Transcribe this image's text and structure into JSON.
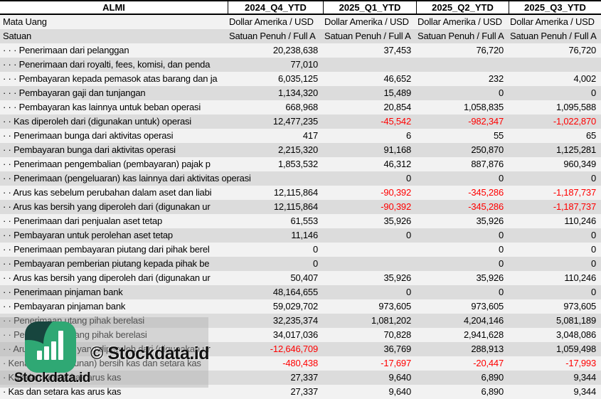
{
  "header": {
    "company": "ALMI",
    "columns": [
      "2024_Q4_YTD",
      "2025_Q1_YTD",
      "2025_Q2_YTD",
      "2025_Q3_YTD"
    ]
  },
  "rows": [
    {
      "label": "Mata Uang",
      "type": "meta",
      "values": [
        "Dollar Amerika / USD",
        "Dollar Amerika / USD",
        "Dollar Amerika / USD",
        "Dollar Amerika / USD"
      ]
    },
    {
      "label": "Satuan",
      "type": "meta",
      "values": [
        "Satuan Penuh / Full A",
        "Satuan Penuh / Full A",
        "Satuan Penuh / Full A",
        "Satuan Penuh / Full A"
      ]
    },
    {
      "label": "· · · Penerimaan dari pelanggan",
      "values": [
        "20,238,638",
        "37,453",
        "76,720",
        "76,720"
      ]
    },
    {
      "label": "· · · Penerimaan dari royalti, fees, komisi, dan penda",
      "values": [
        "77,010",
        "",
        "",
        ""
      ]
    },
    {
      "label": "· · · Pembayaran kepada pemasok atas barang dan ja",
      "values": [
        "6,035,125",
        "46,652",
        "232",
        "4,002"
      ]
    },
    {
      "label": "· · · Pembayaran gaji dan tunjangan",
      "values": [
        "1,134,320",
        "15,489",
        "0",
        "0"
      ]
    },
    {
      "label": "· · · Pembayaran kas lainnya untuk beban operasi",
      "values": [
        "668,968",
        "20,854",
        "1,058,835",
        "1,095,588"
      ]
    },
    {
      "label": "· · Kas diperoleh dari (digunakan untuk) operasi",
      "values": [
        "12,477,235",
        "-45,542",
        "-982,347",
        "-1,022,870"
      ]
    },
    {
      "label": "· · Penerimaan bunga dari aktivitas operasi",
      "values": [
        "417",
        "6",
        "55",
        "65"
      ]
    },
    {
      "label": "· · Pembayaran bunga dari aktivitas operasi",
      "values": [
        "2,215,320",
        "91,168",
        "250,870",
        "1,125,281"
      ]
    },
    {
      "label": "· · Penerimaan pengembalian (pembayaran) pajak p",
      "values": [
        "1,853,532",
        "46,312",
        "887,876",
        "960,349"
      ]
    },
    {
      "label": "· · Penerimaan (pengeluaran) kas lainnya dari aktivitas operasi",
      "overflow": true,
      "values": [
        "",
        "0",
        "0",
        "0"
      ]
    },
    {
      "label": "· · Arus kas sebelum perubahan dalam aset dan liabi",
      "values": [
        "12,115,864",
        "-90,392",
        "-345,286",
        "-1,187,737"
      ]
    },
    {
      "label": "· · Arus kas bersih yang diperoleh dari (digunakan ur",
      "values": [
        "12,115,864",
        "-90,392",
        "-345,286",
        "-1,187,737"
      ]
    },
    {
      "label": "· · Penerimaan dari penjualan aset tetap",
      "values": [
        "61,553",
        "35,926",
        "35,926",
        "110,246"
      ]
    },
    {
      "label": "· · Pembayaran untuk perolehan aset tetap",
      "values": [
        "11,146",
        "0",
        "0",
        "0"
      ]
    },
    {
      "label": "· · Penerimaan pembayaran piutang dari pihak berel",
      "values": [
        "0",
        "",
        "0",
        "0"
      ]
    },
    {
      "label": "· · Pembayaran pemberian piutang kepada pihak be",
      "values": [
        "0",
        "",
        "0",
        "0"
      ]
    },
    {
      "label": "· · Arus kas bersih yang diperoleh dari (digunakan ur",
      "values": [
        "50,407",
        "35,926",
        "35,926",
        "110,246"
      ]
    },
    {
      "label": "· · Penerimaan pinjaman bank",
      "values": [
        "48,164,655",
        "0",
        "0",
        "0"
      ]
    },
    {
      "label": "· · Pembayaran pinjaman bank",
      "values": [
        "59,029,702",
        "973,605",
        "973,605",
        "973,605"
      ]
    },
    {
      "label": "· · Penerimaan utang pihak berelasi",
      "values": [
        "32,235,374",
        "1,081,202",
        "4,204,146",
        "5,081,189"
      ]
    },
    {
      "label": "· · Pembayaran utang pihak berelasi",
      "values": [
        "34,017,036",
        "70,828",
        "2,941,628",
        "3,048,086"
      ]
    },
    {
      "label": "· · Arus kas bersih yang diperoleh dari (digunakan ur",
      "values": [
        "-12,646,709",
        "36,769",
        "288,913",
        "1,059,498"
      ]
    },
    {
      "label": "· Kenaikan (penurunan) bersih kas dan setara kas",
      "values": [
        "-480,438",
        "-17,697",
        "-20,447",
        "-17,993"
      ]
    },
    {
      "label": "· Kas dan setara kas arus kas",
      "values": [
        "27,337",
        "9,640",
        "6,890",
        "9,344"
      ]
    },
    {
      "label": "· Kas dan setara kas arus kas",
      "values": [
        "27,337",
        "9,640",
        "6,890",
        "9,344"
      ]
    }
  ],
  "watermark": {
    "copyright_text": "© Stockdata.id",
    "brand_text": "Stockdata.id",
    "logo_icon": "bar-chart-logo"
  },
  "colors": {
    "negative_value": "#FF0000",
    "row_light": "#F2F2F2",
    "row_dark": "#DCDCDC",
    "logo_teal": "#17453E",
    "logo_green": "#2FA874"
  }
}
